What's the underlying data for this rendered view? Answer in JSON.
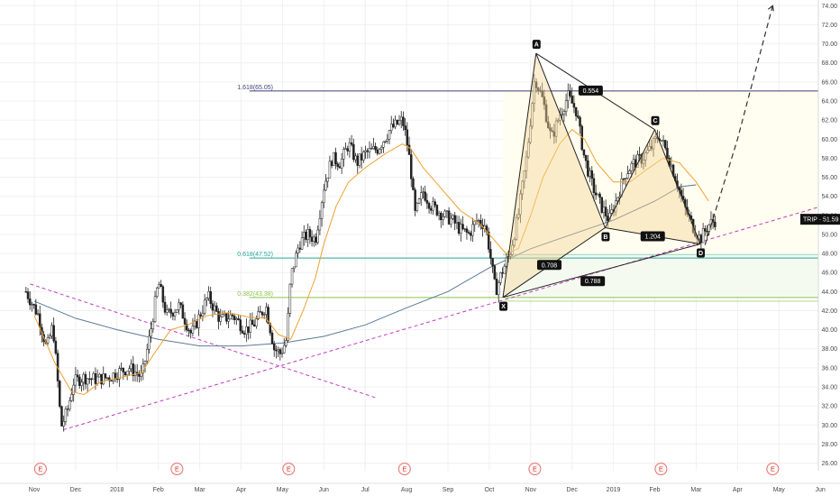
{
  "chart_data": {
    "type": "candlestick",
    "symbol": "TRIP",
    "last_price": "51.59",
    "y_axis": {
      "ylim": [
        25.2,
        74.6
      ],
      "ticks": [
        "26.00",
        "28.00",
        "30.00",
        "32.00",
        "34.00",
        "36.00",
        "38.00",
        "40.00",
        "42.00",
        "44.00",
        "46.00",
        "48.00",
        "50.00",
        "52.00",
        "54.00",
        "56.00",
        "58.00",
        "60.00",
        "62.00",
        "64.00",
        "66.00",
        "68.00",
        "70.00",
        "72.00",
        "74.00"
      ]
    },
    "x_axis": {
      "ticks": [
        {
          "label": "Nov",
          "t": 0
        },
        {
          "label": "Dec",
          "t": 1
        },
        {
          "label": "2018",
          "t": 2
        },
        {
          "label": "Feb",
          "t": 3
        },
        {
          "label": "Mar",
          "t": 4
        },
        {
          "label": "Apr",
          "t": 5
        },
        {
          "label": "May",
          "t": 6
        },
        {
          "label": "Jun",
          "t": 7
        },
        {
          "label": "Jul",
          "t": 8
        },
        {
          "label": "Aug",
          "t": 9
        },
        {
          "label": "Sep",
          "t": 10
        },
        {
          "label": "Oct",
          "t": 11
        },
        {
          "label": "Nov",
          "t": 12
        },
        {
          "label": "Dec",
          "t": 13
        },
        {
          "label": "2019",
          "t": 14
        },
        {
          "label": "Feb",
          "t": 15
        },
        {
          "label": "Mar",
          "t": 16
        },
        {
          "label": "Apr",
          "t": 17
        },
        {
          "label": "May",
          "t": 18
        },
        {
          "label": "Jun",
          "t": 19
        }
      ]
    },
    "price_path": [
      [
        -0.2,
        44.0
      ],
      [
        0.1,
        41.5
      ],
      [
        0.3,
        38.0
      ],
      [
        0.45,
        40.5
      ],
      [
        0.55,
        35.5
      ],
      [
        0.65,
        29.8
      ],
      [
        0.8,
        31.5
      ],
      [
        0.95,
        34.5
      ],
      [
        1.2,
        35.0
      ],
      [
        1.5,
        34.8
      ],
      [
        1.8,
        35.0
      ],
      [
        2.0,
        35.5
      ],
      [
        2.3,
        36.0
      ],
      [
        2.6,
        35.0
      ],
      [
        2.8,
        39.5
      ],
      [
        3.0,
        45.0
      ],
      [
        3.2,
        41.5
      ],
      [
        3.5,
        42.5
      ],
      [
        3.8,
        39.5
      ],
      [
        4.2,
        43.5
      ],
      [
        4.5,
        41.0
      ],
      [
        4.8,
        41.5
      ],
      [
        5.1,
        40.0
      ],
      [
        5.3,
        40.5
      ],
      [
        5.6,
        42.5
      ],
      [
        5.8,
        38.0
      ],
      [
        5.95,
        37.5
      ],
      [
        6.1,
        39.0
      ],
      [
        6.2,
        45.5
      ],
      [
        6.4,
        49.0
      ],
      [
        6.6,
        50.0
      ],
      [
        6.8,
        49.5
      ],
      [
        7.0,
        55.0
      ],
      [
        7.2,
        58.0
      ],
      [
        7.4,
        57.5
      ],
      [
        7.6,
        59.5
      ],
      [
        7.8,
        57.5
      ],
      [
        8.0,
        58.5
      ],
      [
        8.3,
        59.0
      ],
      [
        8.6,
        61.0
      ],
      [
        8.9,
        62.0
      ],
      [
        9.0,
        60.0
      ],
      [
        9.1,
        57.0
      ],
      [
        9.2,
        52.0
      ],
      [
        9.4,
        54.5
      ],
      [
        9.6,
        53.0
      ],
      [
        9.9,
        52.0
      ],
      [
        10.1,
        51.5
      ],
      [
        10.3,
        50.5
      ],
      [
        10.5,
        50.0
      ],
      [
        10.7,
        51.5
      ],
      [
        10.9,
        51.0
      ],
      [
        11.0,
        48.5
      ],
      [
        11.15,
        44.0
      ],
      [
        11.3,
        46.0
      ],
      [
        11.5,
        48.0
      ],
      [
        11.7,
        52.0
      ],
      [
        11.9,
        58.0
      ],
      [
        12.1,
        66.5
      ],
      [
        12.3,
        64.0
      ],
      [
        12.5,
        60.0
      ],
      [
        12.7,
        62.5
      ],
      [
        12.9,
        64.5
      ],
      [
        13.1,
        63.0
      ],
      [
        13.3,
        58.0
      ],
      [
        13.5,
        55.0
      ],
      [
        13.7,
        53.0
      ],
      [
        13.9,
        51.5
      ],
      [
        14.1,
        54.0
      ],
      [
        14.3,
        56.5
      ],
      [
        14.5,
        57.5
      ],
      [
        14.7,
        58.0
      ],
      [
        14.9,
        59.0
      ],
      [
        15.1,
        60.5
      ],
      [
        15.3,
        58.5
      ],
      [
        15.5,
        56.0
      ],
      [
        15.7,
        53.0
      ],
      [
        15.9,
        51.0
      ],
      [
        16.1,
        49.5
      ],
      [
        16.3,
        51.0
      ],
      [
        16.5,
        51.6
      ]
    ],
    "ema_fast": [
      [
        0.0,
        41.5
      ],
      [
        0.5,
        36.5
      ],
      [
        0.9,
        33.5
      ],
      [
        1.2,
        33.2
      ],
      [
        1.6,
        34.5
      ],
      [
        2.1,
        35.0
      ],
      [
        2.6,
        35.5
      ],
      [
        2.9,
        37.5
      ],
      [
        3.3,
        40.0
      ],
      [
        3.7,
        40.5
      ],
      [
        4.2,
        41.5
      ],
      [
        4.7,
        41.8
      ],
      [
        5.2,
        41.3
      ],
      [
        5.6,
        41.2
      ],
      [
        5.9,
        39.5
      ],
      [
        6.2,
        39.0
      ],
      [
        6.5,
        42.0
      ],
      [
        6.8,
        45.5
      ],
      [
        7.0,
        49.0
      ],
      [
        7.3,
        53.0
      ],
      [
        7.6,
        55.5
      ],
      [
        8.0,
        57.0
      ],
      [
        8.5,
        58.5
      ],
      [
        8.9,
        59.5
      ],
      [
        9.1,
        59.0
      ],
      [
        9.4,
        57.0
      ],
      [
        9.8,
        55.0
      ],
      [
        10.3,
        52.5
      ],
      [
        10.8,
        51.0
      ],
      [
        11.1,
        49.5
      ],
      [
        11.4,
        48.0
      ],
      [
        11.7,
        48.5
      ],
      [
        12.0,
        52.0
      ],
      [
        12.3,
        56.0
      ],
      [
        12.7,
        59.5
      ],
      [
        13.0,
        61.0
      ],
      [
        13.3,
        60.0
      ],
      [
        13.6,
        57.5
      ],
      [
        14.0,
        55.5
      ],
      [
        14.4,
        55.5
      ],
      [
        14.8,
        56.8
      ],
      [
        15.2,
        58.0
      ],
      [
        15.6,
        57.5
      ],
      [
        16.0,
        55.5
      ],
      [
        16.3,
        53.5
      ]
    ],
    "sma_slow": [
      [
        0.0,
        43.0
      ],
      [
        1.0,
        41.2
      ],
      [
        2.0,
        40.0
      ],
      [
        3.0,
        39.0
      ],
      [
        4.0,
        38.3
      ],
      [
        5.0,
        38.3
      ],
      [
        6.0,
        38.6
      ],
      [
        7.0,
        39.3
      ],
      [
        8.0,
        40.5
      ],
      [
        9.0,
        42.3
      ],
      [
        10.0,
        44.0
      ],
      [
        11.0,
        46.5
      ],
      [
        12.0,
        48.5
      ],
      [
        13.0,
        50.0
      ],
      [
        14.0,
        51.5
      ],
      [
        15.0,
        53.5
      ],
      [
        15.6,
        55.0
      ],
      [
        16.0,
        55.2
      ]
    ],
    "fib_levels": [
      {
        "label": "1.618(65.05)",
        "price": 65.05,
        "color": "#3f3f7a"
      },
      {
        "label": "0.618(47.52)",
        "price": 47.52,
        "color": "#26a69a"
      },
      {
        "label": "0.382(43.38)",
        "price": 43.38,
        "color": "#8bc34a"
      }
    ],
    "harmonic": {
      "points": [
        {
          "name": "X",
          "t": 11.33,
          "price": 43.4
        },
        {
          "name": "A",
          "t": 12.13,
          "price": 69.0
        },
        {
          "name": "B",
          "t": 13.8,
          "price": 50.7
        },
        {
          "name": "C",
          "t": 15.0,
          "price": 61.0
        },
        {
          "name": "D",
          "t": 16.1,
          "price": 49.0
        }
      ],
      "ratios": [
        {
          "label": "0.554",
          "t": 13.45,
          "price": 65.1
        },
        {
          "label": "0.708",
          "t": 12.45,
          "price": 46.8
        },
        {
          "label": "1.204",
          "t": 14.95,
          "price": 49.8
        },
        {
          "label": "0.788",
          "t": 13.5,
          "price": 45.1
        }
      ],
      "projection": [
        [
          16.15,
          48.0
        ],
        [
          17.0,
          60.0
        ],
        [
          17.85,
          74.0
        ]
      ]
    },
    "trendlines": [
      {
        "from": [
          -0.1,
          44.8
        ],
        "to": [
          8.3,
          32.8
        ],
        "style": "dashed",
        "color": "#c040c0"
      },
      {
        "from": [
          0.7,
          29.5
        ],
        "to": [
          20.0,
          54.2
        ],
        "style": "dashed",
        "color": "#c040c0"
      }
    ],
    "earnings_markers": [
      "E",
      "E",
      "E",
      "E",
      "E",
      "E",
      "E"
    ],
    "earnings_t": [
      0.15,
      3.45,
      6.15,
      8.95,
      12.1,
      15.15,
      17.85
    ]
  }
}
